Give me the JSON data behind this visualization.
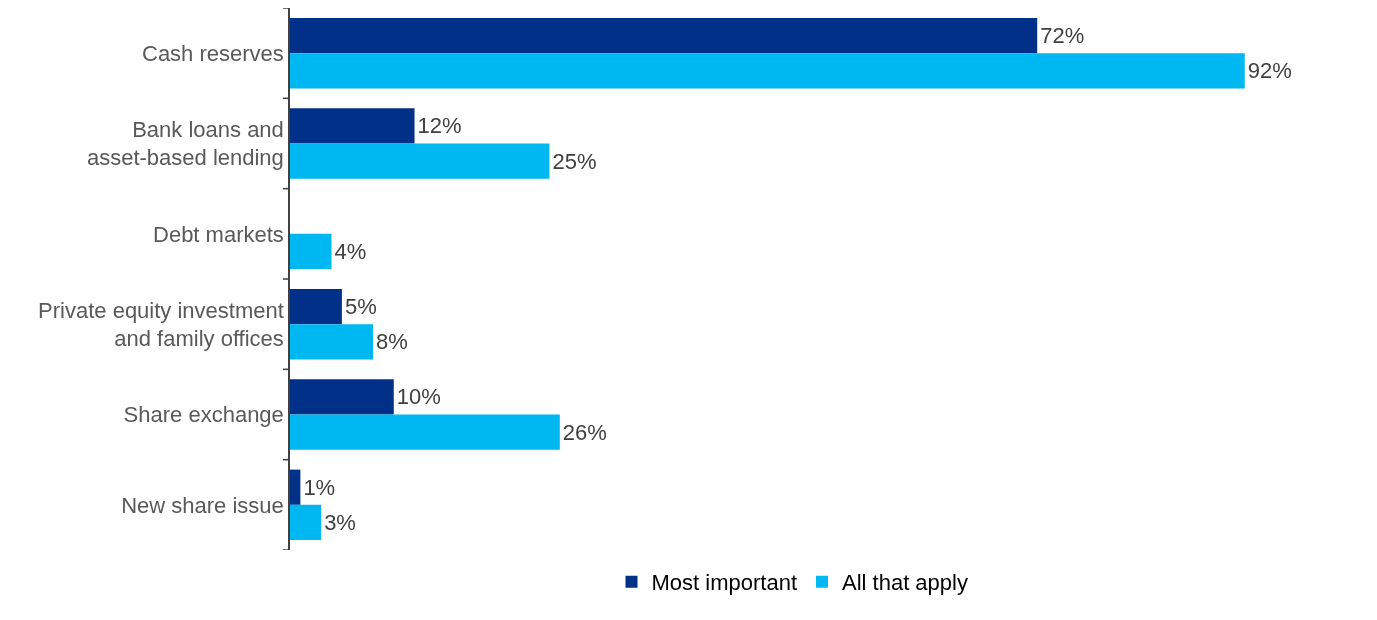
{
  "chart_data": {
    "type": "bar",
    "orientation": "horizontal",
    "categories": [
      "Cash reserves",
      "Bank loans and\nasset-based lending",
      "Debt markets",
      "Private equity investment\nand family offices",
      "Share exchange",
      "New share issue"
    ],
    "series": [
      {
        "name": "Most important",
        "color": "#003087",
        "values": [
          72,
          12,
          null,
          5,
          10,
          1
        ],
        "value_labels": [
          "72%",
          "12%",
          null,
          "5%",
          "10%",
          "1%"
        ]
      },
      {
        "name": "All that apply",
        "color": "#00b8f1",
        "values": [
          92,
          25,
          4,
          8,
          26,
          3
        ],
        "value_labels": [
          "92%",
          "25%",
          "4%",
          "8%",
          "26%",
          "3%"
        ]
      }
    ],
    "legend": "bottom"
  }
}
